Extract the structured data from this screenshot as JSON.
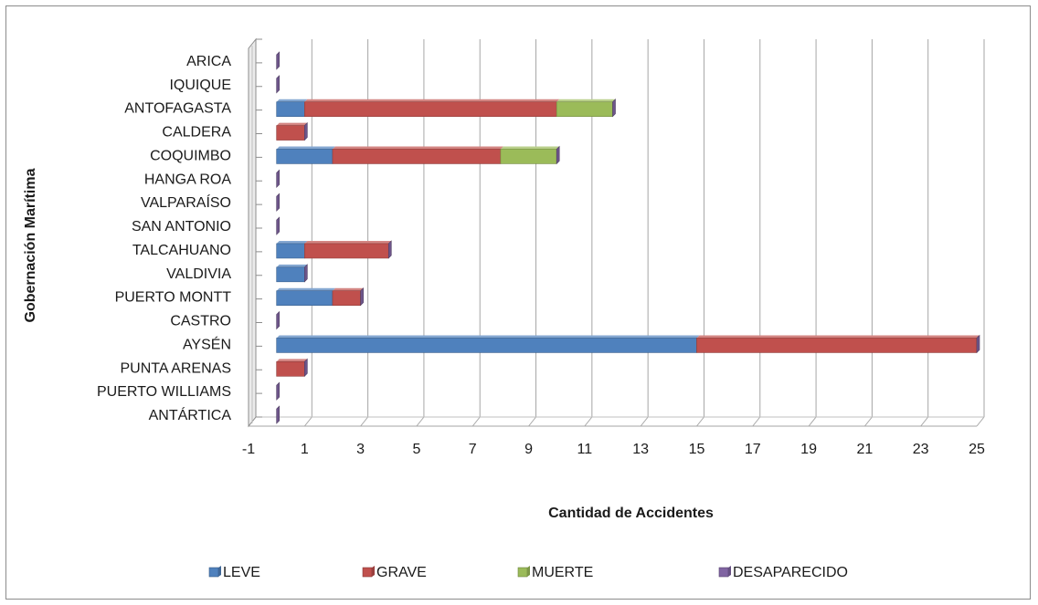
{
  "chart_data": {
    "type": "bar",
    "orientation": "horizontal",
    "stacked": true,
    "style": "3d",
    "title": "",
    "xlabel": "Cantidad de Accidentes",
    "ylabel": "Gobernación Marítima",
    "xlim": [
      -1,
      25
    ],
    "xticks": [
      -1,
      1,
      3,
      5,
      7,
      9,
      11,
      13,
      15,
      17,
      19,
      21,
      23,
      25
    ],
    "grid": "vertical",
    "legend_position": "bottom",
    "categories": [
      "ARICA",
      "IQUIQUE",
      "ANTOFAGASTA",
      "CALDERA",
      "COQUIMBO",
      "HANGA ROA",
      "VALPARAÍSO",
      "SAN ANTONIO",
      "TALCAHUANO",
      "VALDIVIA",
      "PUERTO MONTT",
      "CASTRO",
      "AYSÉN",
      "PUNTA ARENAS",
      "PUERTO WILLIAMS",
      "ANTÁRTICA"
    ],
    "series": [
      {
        "name": "LEVE",
        "color": "#4f81bd",
        "values": [
          0,
          0,
          1,
          0,
          2,
          0,
          0,
          0,
          1,
          1,
          2,
          0,
          15,
          0,
          0,
          0
        ]
      },
      {
        "name": "GRAVE",
        "color": "#c0504d",
        "values": [
          0,
          0,
          9,
          1,
          6,
          0,
          0,
          0,
          3,
          0,
          1,
          0,
          10,
          1,
          0,
          0
        ]
      },
      {
        "name": "MUERTE",
        "color": "#9bbb59",
        "values": [
          0,
          0,
          2,
          0,
          2,
          0,
          0,
          0,
          0,
          0,
          0,
          0,
          0,
          0,
          0,
          0
        ]
      },
      {
        "name": "DESAPARECIDO",
        "color": "#8064a2",
        "values": [
          0,
          0,
          0,
          0,
          0,
          0,
          0,
          0,
          0,
          0,
          0,
          0,
          0,
          0,
          0,
          0
        ]
      }
    ]
  }
}
